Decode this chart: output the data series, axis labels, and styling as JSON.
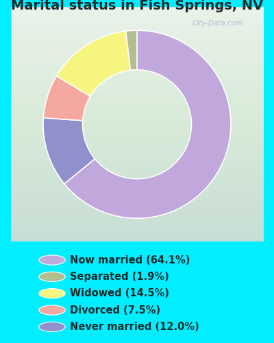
{
  "title": "Marital status in Fish Springs, NV",
  "slices": [
    64.1,
    12.0,
    7.5,
    14.5,
    1.9
  ],
  "legend_labels": [
    "Now married (64.1%)",
    "Separated (1.9%)",
    "Widowed (14.5%)",
    "Divorced (7.5%)",
    "Never married (12.0%)"
  ],
  "legend_colors": [
    "#C0A8DC",
    "#B0BE90",
    "#F5F580",
    "#F5A8A0",
    "#9090CC"
  ],
  "slice_colors": [
    "#C0A8DC",
    "#9090CC",
    "#F5A8A0",
    "#F5F580",
    "#B0BE90"
  ],
  "bg_cyan": "#00EEFF",
  "chart_bg_top": "#E8F0E8",
  "chart_bg_bottom": "#D0E8D8",
  "watermark": "City-Data.com",
  "legend_fontsize": 10.5,
  "title_fontsize": 14,
  "donut_width": 0.42,
  "startangle": 90
}
